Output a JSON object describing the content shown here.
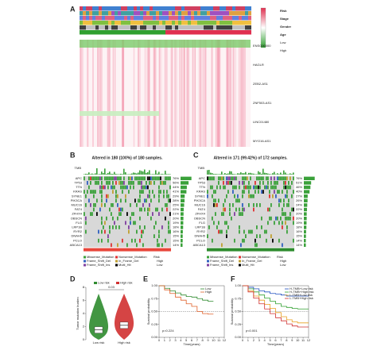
{
  "panel_labels": [
    "A",
    "B",
    "C",
    "D",
    "E",
    "F"
  ],
  "heatmap": {
    "rows": [
      "ENSG00000",
      "HAGLR",
      "ZEB2-AS1",
      "ZNF503-AS1",
      "LINC01480",
      "MYO16-AS1"
    ],
    "legend": [
      "Risk",
      "Stage",
      "Gender",
      "Age",
      "Low",
      "High"
    ]
  },
  "oncoplot_b": {
    "title": "Altered in 180 (100%) of 180 samples.",
    "tmb": "TMB",
    "genes": [
      "APC",
      "TP53",
      "TTN",
      "KRAS",
      "SYNE1",
      "PIK3CA",
      "MUC16",
      "FAT4",
      "ZFHX4",
      "OBSCN",
      "FLG",
      "LRP1B",
      "RYR2",
      "DNAH5",
      "PCLO",
      "ABCA13"
    ],
    "percents": [
      76,
      56,
      44,
      41,
      29,
      28,
      25,
      22,
      21,
      20,
      19,
      18,
      16,
      15,
      15,
      14
    ],
    "percent_labels": [
      "76%",
      "56%",
      "44%",
      "41%",
      "29%",
      "28%",
      "25%",
      "22%",
      "21%",
      "20%",
      "19%",
      "18%",
      "16%",
      "15%",
      "15%",
      "14%"
    ],
    "risk_color": "#e8463b"
  },
  "oncoplot_c": {
    "title": "Altered in 171 (99.42%) of 172 samples.",
    "tmb": "TMB",
    "genes": [
      "APC",
      "TP53",
      "TTN",
      "KRAS",
      "SYNE1",
      "PIK3CA",
      "MUC16",
      "FAT4",
      "ZFHX4",
      "OBSCN",
      "FLG",
      "LRP1B",
      "RYR2",
      "DNAH5",
      "PCLO",
      "ABCA13"
    ],
    "percents": [
      76,
      51,
      46,
      40,
      27,
      26,
      24,
      22,
      20,
      20,
      19,
      18,
      16,
      15,
      14,
      14
    ],
    "percent_labels": [
      "76%",
      "51%",
      "46%",
      "40%",
      "27%",
      "26%",
      "24%",
      "22%",
      "20%",
      "20%",
      "19%",
      "18%",
      "16%",
      "15%",
      "14%",
      "14%"
    ],
    "risk_color": "#2e8b2e"
  },
  "mutation_legend": {
    "items": [
      "Missense_Mutation",
      "Nonsense_Mutation",
      "Frame_Shift_Del",
      "In_Frame_Del",
      "Frame_Shift_Ins",
      "Multi_Hit"
    ],
    "colors": [
      "#3aa13a",
      "#e03030",
      "#3060c0",
      "#c0a030",
      "#8040a0",
      "#000000"
    ],
    "risk": "Risk",
    "levels": [
      "High",
      "Low"
    ]
  },
  "chart_data": [
    {
      "type": "violin",
      "categories": [
        "Low risk",
        "High risk"
      ],
      "colors": [
        "#2e8b2e",
        "#d03030"
      ],
      "values": [
        1.5,
        2.2
      ],
      "ylabel": "Tumor mutation burden",
      "ylim": [
        0,
        8
      ],
      "yticks": [
        0,
        2,
        4,
        6,
        8
      ],
      "annotation": "0.03"
    },
    {
      "type": "line",
      "x": [
        0,
        1,
        2,
        3,
        4,
        5,
        6,
        7,
        8,
        9,
        10
      ],
      "series": [
        {
          "name": "Low",
          "color": "#2e8b2e",
          "values": [
            1,
            0.95,
            0.9,
            0.86,
            0.82,
            0.79,
            0.78,
            0.75,
            0.72,
            0.7,
            0.7
          ]
        },
        {
          "name": "High",
          "color": "#e0602a",
          "values": [
            1,
            0.92,
            0.85,
            0.78,
            0.72,
            0.65,
            0.6,
            0.5,
            0.46,
            0.45,
            0.45
          ]
        }
      ],
      "xlim": [
        0,
        12
      ],
      "xticks": [
        0,
        1,
        2,
        3,
        4,
        5,
        6,
        7,
        8,
        9,
        10,
        11,
        12
      ],
      "ylim": [
        0,
        1
      ],
      "yticks": [
        {
          "value": 0,
          "label": "0.00"
        },
        {
          "value": 0.25,
          "label": "0.25"
        },
        {
          "value": 0.5,
          "label": "0.50"
        },
        {
          "value": 0.75,
          "label": "0.75"
        },
        {
          "value": 1,
          "label": "1.00"
        }
      ],
      "xlabel": "Time(years)",
      "ylabel": "Survival probability",
      "annotation": "p=0.224"
    },
    {
      "type": "line",
      "x": [
        0,
        1,
        2,
        3,
        4,
        5,
        6,
        7,
        8,
        9,
        10,
        11,
        12
      ],
      "series": [
        {
          "name": "H-TMB+Low risk",
          "color": "#2050c0",
          "values": [
            1,
            0.97,
            0.94,
            0.9,
            0.88,
            0.85,
            0.84,
            0.82,
            0.8,
            0.8,
            0.8,
            0.8,
            0.8
          ]
        },
        {
          "name": "H-TMB+High risk",
          "color": "#30a030",
          "values": [
            1,
            0.94,
            0.88,
            0.82,
            0.76,
            0.7,
            0.65,
            0.6,
            0.58,
            0.56,
            0.55,
            0.55,
            0.55
          ]
        },
        {
          "name": "L-TMB+Low risk",
          "color": "#e8a020",
          "values": [
            1,
            0.9,
            0.8,
            0.72,
            0.64,
            0.56,
            0.48,
            0.4,
            0.34,
            0.3,
            0.28,
            0.28,
            0.28
          ]
        },
        {
          "name": "L-TMB+High risk",
          "color": "#d03030",
          "values": [
            1,
            0.88,
            0.76,
            0.65,
            0.55,
            0.46,
            0.38,
            0.32,
            0.26,
            0.22,
            0.2,
            0.2,
            0.2
          ]
        }
      ],
      "xlim": [
        0,
        12
      ],
      "xticks": [
        0,
        1,
        2,
        3,
        4,
        5,
        6,
        7,
        8,
        9,
        10,
        11,
        12
      ],
      "ylim": [
        0,
        1
      ],
      "yticks": [
        {
          "value": 0,
          "label": "0.00"
        },
        {
          "value": 0.25,
          "label": "0.25"
        },
        {
          "value": 0.5,
          "label": "0.50"
        },
        {
          "value": 0.75,
          "label": "0.75"
        },
        {
          "value": 1,
          "label": "1.00"
        }
      ],
      "xlabel": "Time(years)",
      "ylabel": "Survival probability",
      "annotation": "p<0.001"
    }
  ]
}
